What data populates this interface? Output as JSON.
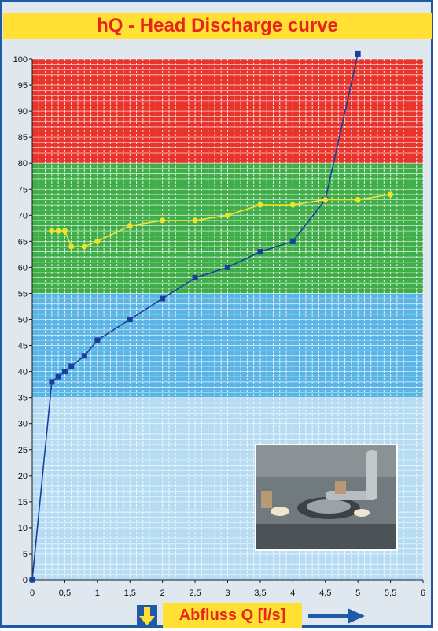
{
  "title": "hQ - Head Discharge curve",
  "x_axis_label": "Abfluss Q [l/s]",
  "colors": {
    "frame": "#1f5aa6",
    "title_bg": "#ffe033",
    "title_text": "#e8251c",
    "zone_red": "#e8342b",
    "zone_green": "#3fae49",
    "zone_blue": "#5ab4e6",
    "zone_lightblue": "#b6dcf3",
    "series_blue": "#1a3f9c",
    "series_yellow": "#f2e230"
  },
  "icons": [
    "down-arrow-icon",
    "right-arrow-icon"
  ],
  "photo_alt_name": "pump-outlet-photo",
  "chart_data": {
    "type": "line",
    "title": "hQ - Head Discharge curve",
    "xlabel": "Abfluss Q [l/s]",
    "ylabel": "",
    "xlim": [
      0,
      6
    ],
    "ylim": [
      0,
      100
    ],
    "x_ticks": [
      "0",
      "0,5",
      "1",
      "1,5",
      "2",
      "2,5",
      "3",
      "3,5",
      "4",
      "4,5",
      "5",
      "5,5",
      "6"
    ],
    "y_ticks": [
      "0",
      "5",
      "10",
      "15",
      "20",
      "25",
      "30",
      "35",
      "40",
      "45",
      "50",
      "55",
      "60",
      "65",
      "70",
      "75",
      "80",
      "85",
      "90",
      "95",
      "100"
    ],
    "grid": true,
    "zones": [
      {
        "from": 80,
        "to": 100,
        "color": "#e8342b"
      },
      {
        "from": 55,
        "to": 80,
        "color": "#3fae49"
      },
      {
        "from": 35,
        "to": 55,
        "color": "#5ab4e6"
      },
      {
        "from": 0,
        "to": 35,
        "color": "#b6dcf3"
      }
    ],
    "series": [
      {
        "color": "#1a3f9c",
        "marker": "square",
        "points": [
          [
            0,
            0
          ],
          [
            0.3,
            38
          ],
          [
            0.4,
            39
          ],
          [
            0.5,
            40
          ],
          [
            0.6,
            41
          ],
          [
            0.8,
            43
          ],
          [
            1,
            46
          ],
          [
            1.5,
            50
          ],
          [
            2,
            54
          ],
          [
            2.5,
            58
          ],
          [
            3,
            60
          ],
          [
            3.5,
            63
          ],
          [
            4,
            65
          ],
          [
            4.5,
            73
          ],
          [
            5,
            101
          ]
        ]
      },
      {
        "color": "#f2e230",
        "marker": "circle",
        "points": [
          [
            0.3,
            67
          ],
          [
            0.4,
            67
          ],
          [
            0.5,
            67
          ],
          [
            0.6,
            64
          ],
          [
            0.8,
            64
          ],
          [
            1,
            65
          ],
          [
            1.5,
            68
          ],
          [
            2,
            69
          ],
          [
            2.5,
            69
          ],
          [
            3,
            70
          ],
          [
            3.5,
            72
          ],
          [
            4,
            72
          ],
          [
            4.5,
            73
          ],
          [
            5,
            73
          ],
          [
            5.5,
            74
          ]
        ]
      }
    ]
  }
}
